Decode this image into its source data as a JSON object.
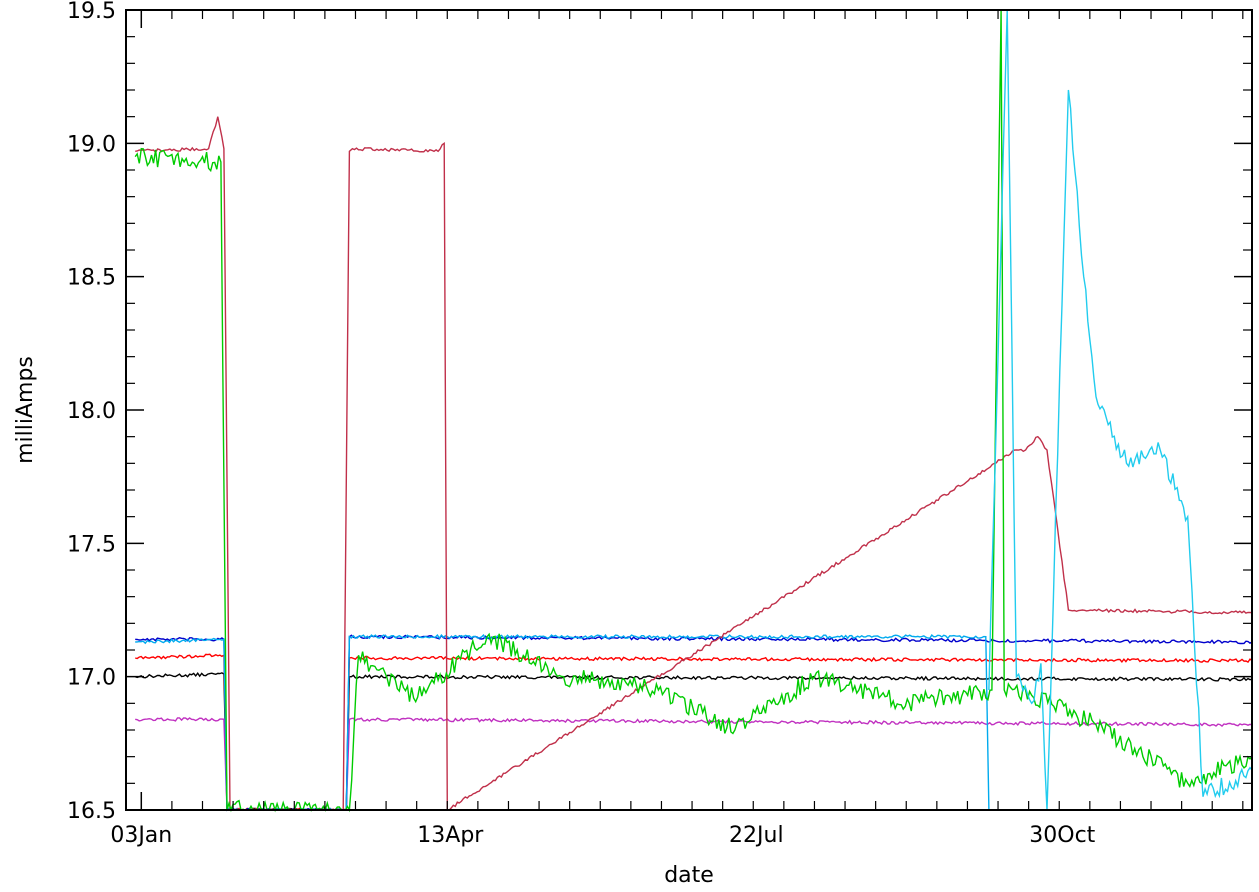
{
  "chart_data": {
    "type": "line",
    "title": "",
    "xlabel": "date",
    "ylabel": "milliAmps",
    "x_unit": "date",
    "xlim": [
      "2019-12-29",
      "2020-12-31"
    ],
    "ylim": [
      16.5,
      19.5
    ],
    "x_ticks": [
      {
        "date": "2020-01-03",
        "label": "03Jan"
      },
      {
        "date": "2020-04-13",
        "label": "13Apr"
      },
      {
        "date": "2020-07-22",
        "label": "22Jul"
      },
      {
        "date": "2020-10-30",
        "label": "30Oct"
      }
    ],
    "y_ticks": [
      16.5,
      17.0,
      17.5,
      18.0,
      18.5,
      19.0,
      19.5
    ],
    "grid": false,
    "series": [
      {
        "color": "#000000",
        "level": 17.0,
        "x": [
          "2020-01-01",
          "2020-01-30",
          "2020-01-31",
          "2020-03-10",
          "2020-03-11",
          "2020-12-31"
        ],
        "y": [
          17.0,
          17.01,
          16.5,
          16.5,
          17.0,
          16.99
        ]
      },
      {
        "color": "#ff0000",
        "level": 17.07,
        "x": [
          "2020-01-01",
          "2020-01-30",
          "2020-01-31",
          "2020-03-10",
          "2020-03-11",
          "2020-12-31"
        ],
        "y": [
          17.07,
          17.08,
          16.5,
          16.5,
          17.07,
          17.06
        ]
      },
      {
        "color": "#c030c0",
        "level": 16.84,
        "x": [
          "2020-01-01",
          "2020-01-30",
          "2020-01-31",
          "2020-03-10",
          "2020-03-11",
          "2020-12-31"
        ],
        "y": [
          16.84,
          16.84,
          16.5,
          16.5,
          16.84,
          16.82
        ]
      },
      {
        "color": "#0000cc",
        "level": 17.14,
        "x": [
          "2020-01-01",
          "2020-01-30",
          "2020-01-31",
          "2020-03-10",
          "2020-03-11",
          "2020-12-31"
        ],
        "y": [
          17.14,
          17.14,
          16.5,
          16.5,
          17.15,
          17.13
        ]
      },
      {
        "color": "#00aaee",
        "level": 17.13,
        "x": [
          "2020-01-01",
          "2020-01-30",
          "2020-01-31",
          "2020-03-10",
          "2020-03-11",
          "2020-10-05",
          "2020-10-06"
        ],
        "y": [
          17.13,
          17.14,
          16.5,
          16.5,
          17.15,
          17.15,
          16.5
        ]
      },
      {
        "color": "#c0304a",
        "x": [
          "2020-01-01",
          "2020-01-25",
          "2020-01-28",
          "2020-01-30",
          "2020-02-01",
          "2020-03-09",
          "2020-03-11",
          "2020-03-12",
          "2020-04-09",
          "2020-04-11",
          "2020-04-12",
          "2020-10-15",
          "2020-10-18",
          "2020-10-22",
          "2020-10-25",
          "2020-11-01",
          "2020-12-31"
        ],
        "y": [
          18.97,
          18.98,
          19.1,
          18.98,
          16.5,
          16.5,
          18.97,
          18.98,
          18.97,
          19.0,
          16.5,
          17.85,
          17.85,
          17.9,
          17.85,
          17.25,
          17.24
        ]
      },
      {
        "color": "#00cc00",
        "x": [
          "2020-01-01",
          "2020-01-29",
          "2020-01-31",
          "2020-03-11",
          "2020-03-14",
          "2020-04-01",
          "2020-04-25",
          "2020-05-20",
          "2020-06-20",
          "2020-07-15",
          "2020-08-10",
          "2020-09-10",
          "2020-10-07",
          "2020-10-10",
          "2020-10-11",
          "2020-10-20",
          "2020-11-10",
          "2020-12-10",
          "2020-12-31"
        ],
        "y": [
          18.95,
          18.93,
          16.5,
          16.5,
          17.08,
          16.92,
          17.15,
          17.0,
          16.95,
          16.8,
          17.0,
          16.9,
          16.95,
          19.5,
          16.95,
          16.93,
          16.82,
          16.6,
          16.7
        ]
      },
      {
        "color": "#22ccee",
        "x": [
          "2020-10-06",
          "2020-10-12",
          "2020-10-15",
          "2020-10-20",
          "2020-10-23",
          "2020-10-25",
          "2020-11-01",
          "2020-11-06",
          "2020-11-10",
          "2020-11-20",
          "2020-12-01",
          "2020-12-10",
          "2020-12-15",
          "2020-12-31"
        ],
        "y": [
          16.95,
          19.5,
          17.0,
          16.9,
          17.05,
          16.5,
          19.2,
          18.5,
          18.05,
          17.8,
          17.85,
          17.6,
          16.55,
          16.65
        ]
      }
    ]
  }
}
